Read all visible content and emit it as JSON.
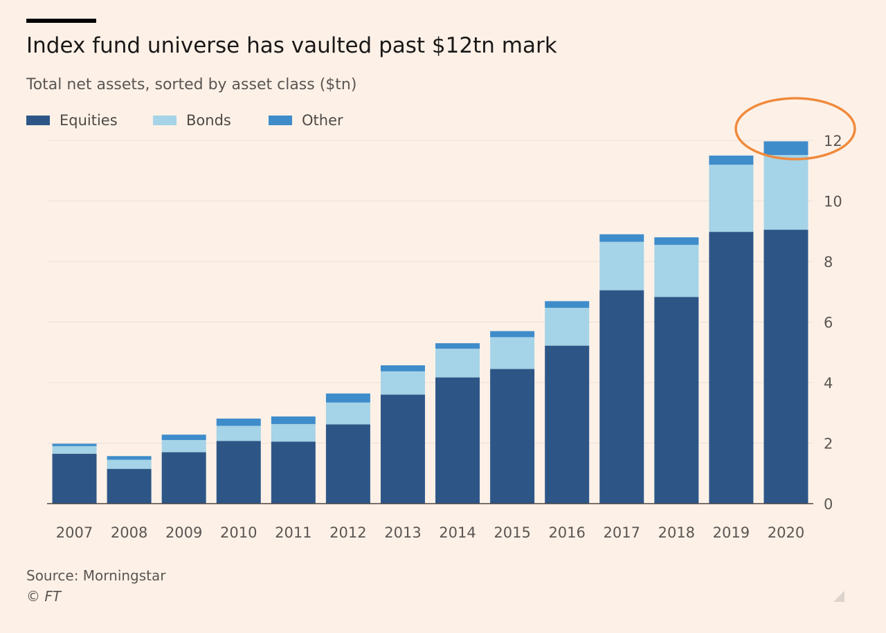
{
  "title": "Index fund universe has vaulted past $12tn mark",
  "subtitle": "Total net assets, sorted by asset class ($tn)",
  "source": "Source: Morningstar",
  "copyright": "© FT",
  "colors": {
    "equities": "#2d5687",
    "bonds": "#a5d3e7",
    "other": "#3f8ccb",
    "grid": "#e9e0d8",
    "highlight": "#f08a3c"
  },
  "icons": {
    "corner": "resize-corner-icon"
  },
  "chart_data": {
    "type": "bar",
    "stacked": true,
    "categories": [
      "2007",
      "2008",
      "2009",
      "2010",
      "2011",
      "2012",
      "2013",
      "2014",
      "2015",
      "2016",
      "2017",
      "2018",
      "2019",
      "2020"
    ],
    "series": [
      {
        "name": "Equities",
        "values": [
          1.65,
          1.15,
          1.7,
          2.07,
          2.05,
          2.62,
          3.6,
          4.17,
          4.45,
          5.22,
          7.05,
          6.83,
          8.98,
          9.05
        ]
      },
      {
        "name": "Bonds",
        "values": [
          0.25,
          0.3,
          0.4,
          0.5,
          0.58,
          0.72,
          0.77,
          0.95,
          1.05,
          1.25,
          1.6,
          1.72,
          2.22,
          2.47
        ]
      },
      {
        "name": "Other",
        "values": [
          0.08,
          0.12,
          0.18,
          0.24,
          0.25,
          0.3,
          0.2,
          0.18,
          0.2,
          0.22,
          0.25,
          0.25,
          0.3,
          0.45
        ]
      }
    ],
    "y_ticks": [
      "0",
      "2",
      "4",
      "6",
      "8",
      "10",
      "12"
    ],
    "ylim": [
      0,
      12
    ],
    "y_axis_side": "right",
    "grid": true,
    "legend": "top-left",
    "annotation": {
      "type": "ellipse",
      "target": "2020",
      "description": "highlight circle"
    }
  }
}
